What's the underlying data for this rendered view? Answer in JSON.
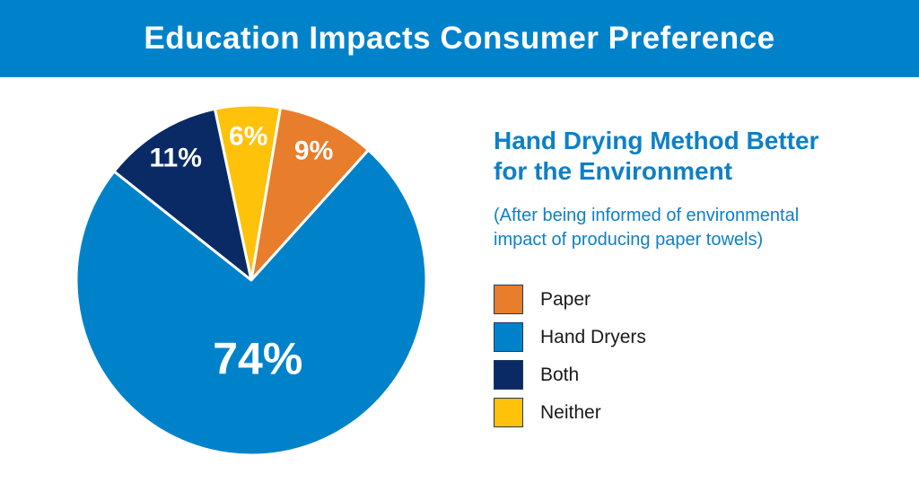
{
  "banner": {
    "title": "Education Impacts Consumer Preference"
  },
  "panel": {
    "heading": "Hand Drying Method Better for the Environment",
    "subtitle": "(After being informed of environmental impact of producing paper towels)"
  },
  "colors": {
    "banner_bg": "#0082CB",
    "banner_fg": "#FFFFFF",
    "text_blue": "#0E80C6",
    "legend_text": "#1A1A1A",
    "swatch_border": "#1F3A5F",
    "slice_label_color": "#FFFFFF",
    "background": "#FFFFFF"
  },
  "chart_data": {
    "type": "pie",
    "title": "Hand Drying Method Better for the Environment",
    "subtitle": "(After being informed of environmental impact of producing paper towels)",
    "direction": "clockwise",
    "start_angle_deg": 9.6,
    "legend_position": "right",
    "slices": [
      {
        "label": "Paper",
        "value": 9,
        "display": "9%",
        "color": "#E87D2B"
      },
      {
        "label": "Hand Dryers",
        "value": 74,
        "display": "74%",
        "color": "#0082CB"
      },
      {
        "label": "Both",
        "value": 11,
        "display": "11%",
        "color": "#0A2A66"
      },
      {
        "label": "Neither",
        "value": 6,
        "display": "6%",
        "color": "#FFC20A"
      }
    ]
  }
}
